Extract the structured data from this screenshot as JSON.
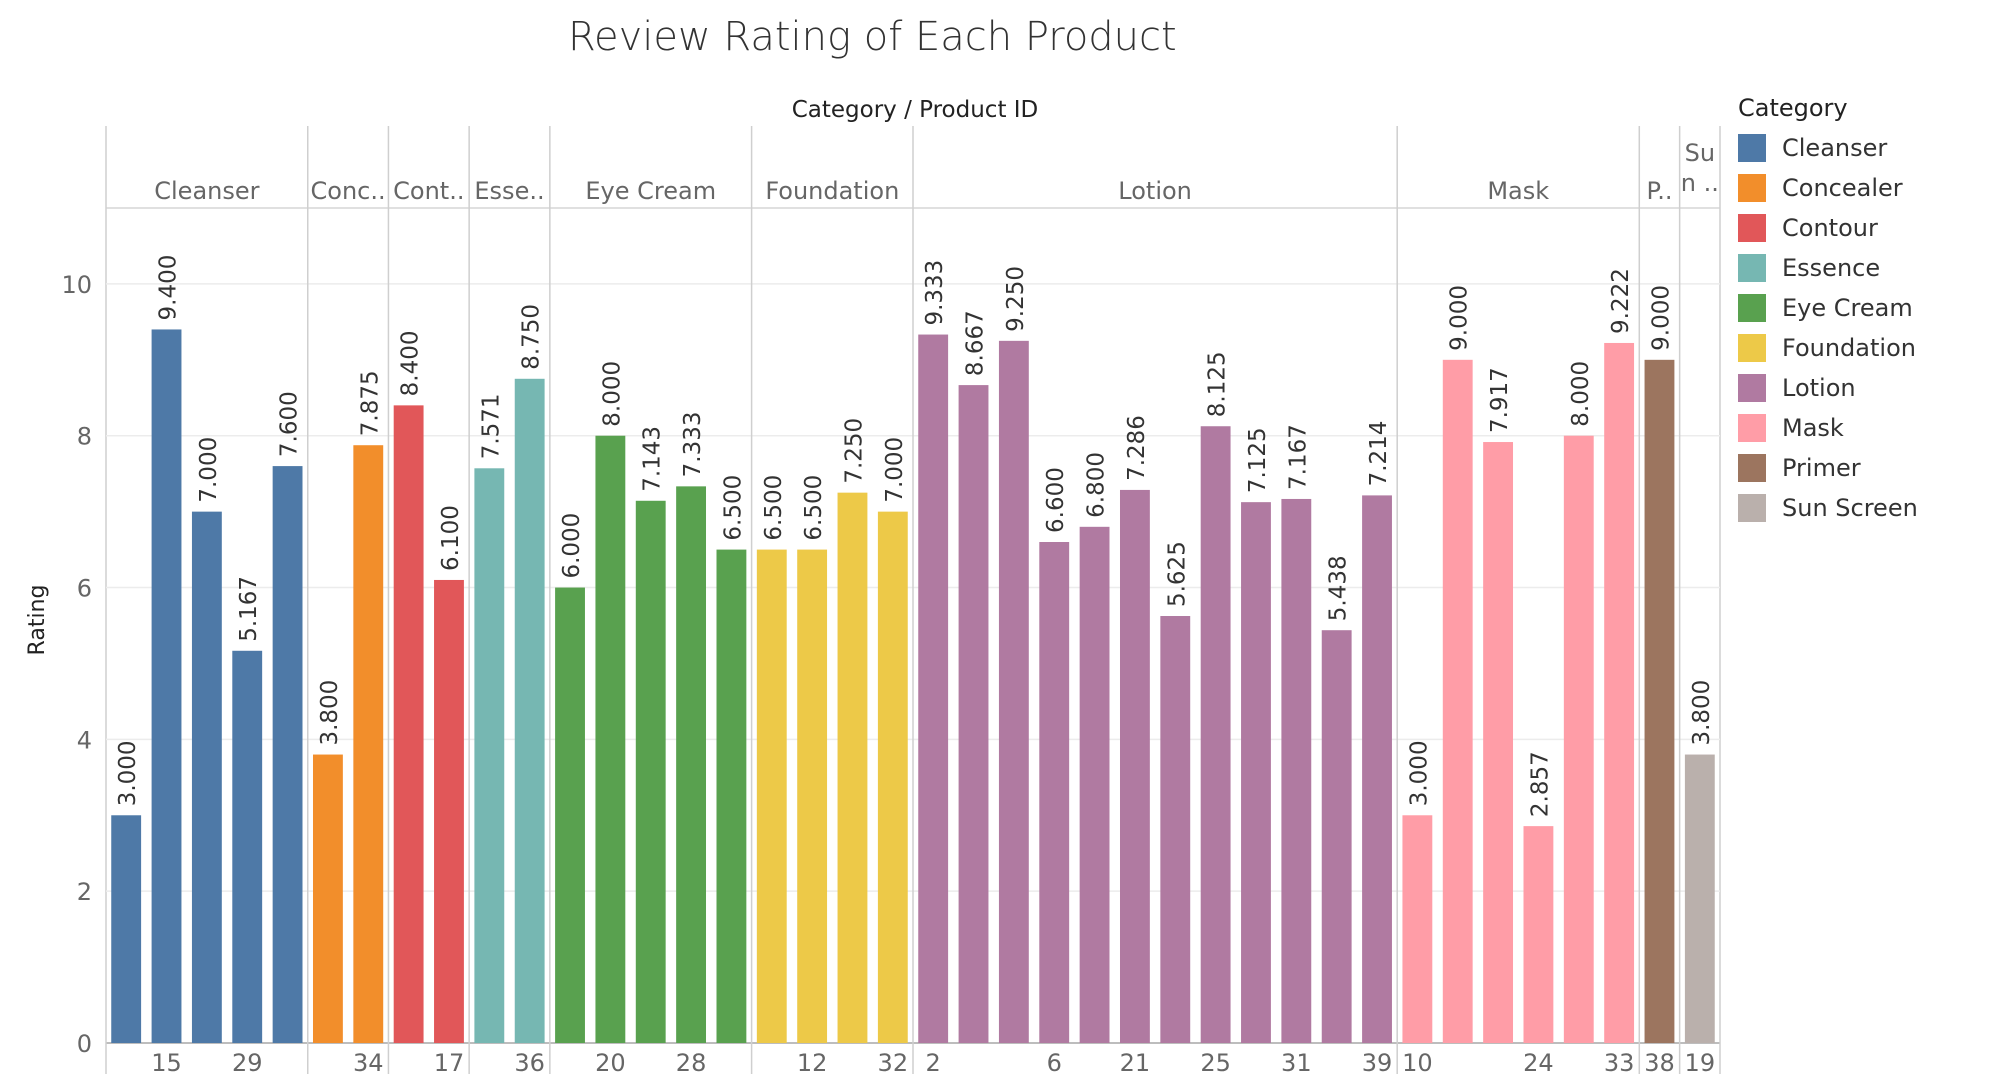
{
  "chart_data": {
    "type": "bar",
    "title": "Review Rating of Each Product",
    "header_label": "Category / Product ID",
    "ylabel": "Rating",
    "ylim": [
      0,
      11
    ],
    "yticks": [
      0,
      2,
      4,
      6,
      8,
      10
    ],
    "legend_title": "Category",
    "legend_position": "right",
    "grid": true,
    "categories": [
      {
        "name": "Cleanser",
        "header": "Cleanser",
        "color": "#4e79a7",
        "products": [
          {
            "id": "",
            "value": 3.0
          },
          {
            "id": "15",
            "value": 9.4
          },
          {
            "id": "",
            "value": 7.0
          },
          {
            "id": "29",
            "value": 5.167
          },
          {
            "id": "",
            "value": 7.6
          }
        ]
      },
      {
        "name": "Concealer",
        "header": "Conc..",
        "color": "#f28e2b",
        "products": [
          {
            "id": "",
            "value": 3.8
          },
          {
            "id": "34",
            "value": 7.875
          }
        ]
      },
      {
        "name": "Contour",
        "header": "Cont..",
        "color": "#e15759",
        "products": [
          {
            "id": "",
            "value": 8.4
          },
          {
            "id": "17",
            "value": 6.1
          }
        ]
      },
      {
        "name": "Essence",
        "header": "Esse..",
        "color": "#76b7b2",
        "products": [
          {
            "id": "",
            "value": 7.571
          },
          {
            "id": "36",
            "value": 8.75
          }
        ]
      },
      {
        "name": "Eye Cream",
        "header": "Eye Cream",
        "color": "#59a14f",
        "products": [
          {
            "id": "",
            "value": 6.0
          },
          {
            "id": "20",
            "value": 8.0
          },
          {
            "id": "",
            "value": 7.143
          },
          {
            "id": "28",
            "value": 7.333
          },
          {
            "id": "",
            "value": 6.5
          }
        ]
      },
      {
        "name": "Foundation",
        "header": "Foundation",
        "color": "#edc948",
        "products": [
          {
            "id": "",
            "value": 6.5
          },
          {
            "id": "12",
            "value": 6.5
          },
          {
            "id": "",
            "value": 7.25
          },
          {
            "id": "32",
            "value": 7.0
          }
        ]
      },
      {
        "name": "Lotion",
        "header": "Lotion",
        "color": "#b07aa1",
        "products": [
          {
            "id": "2",
            "value": 9.333
          },
          {
            "id": "",
            "value": 8.667
          },
          {
            "id": "",
            "value": 9.25
          },
          {
            "id": "6",
            "value": 6.6
          },
          {
            "id": "",
            "value": 6.8
          },
          {
            "id": "21",
            "value": 7.286
          },
          {
            "id": "",
            "value": 5.625
          },
          {
            "id": "25",
            "value": 8.125
          },
          {
            "id": "",
            "value": 7.125
          },
          {
            "id": "31",
            "value": 7.167
          },
          {
            "id": "",
            "value": 5.438
          },
          {
            "id": "39",
            "value": 7.214
          }
        ]
      },
      {
        "name": "Mask",
        "header": "Mask",
        "color": "#ff9da7",
        "products": [
          {
            "id": "10",
            "value": 3.0
          },
          {
            "id": "",
            "value": 9.0
          },
          {
            "id": "",
            "value": 7.917
          },
          {
            "id": "24",
            "value": 2.857
          },
          {
            "id": "",
            "value": 8.0
          },
          {
            "id": "33",
            "value": 9.222
          }
        ]
      },
      {
        "name": "Primer",
        "header": "P..",
        "color": "#9c755f",
        "products": [
          {
            "id": "38",
            "value": 9.0
          }
        ]
      },
      {
        "name": "Sun Screen",
        "header": "Su n ..",
        "color": "#bab0ac",
        "products": [
          {
            "id": "19",
            "value": 3.8
          }
        ]
      }
    ]
  }
}
